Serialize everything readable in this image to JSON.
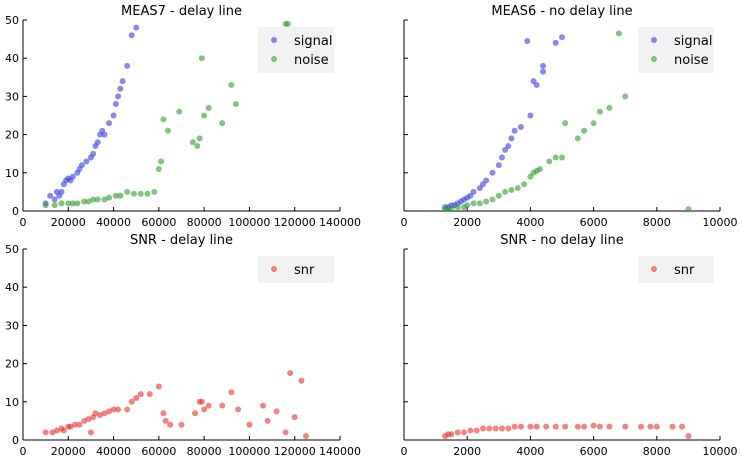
{
  "colors": {
    "signal": "#3b3be0",
    "noise": "#2e9a2e",
    "snr": "#e83030",
    "legend_bg": "#f2f2f2"
  },
  "chart_data": [
    {
      "type": "scatter",
      "title": "MEAS7 - delay line",
      "xlim": [
        0,
        140000
      ],
      "ylim": [
        0,
        50
      ],
      "xticks": [
        0,
        20000,
        40000,
        60000,
        80000,
        100000,
        120000,
        140000
      ],
      "yticks": [
        0,
        10,
        20,
        30,
        40,
        50
      ],
      "show_ytick_labels": true,
      "legend_position": "upper-right",
      "series": [
        {
          "name": "signal",
          "color_key": "signal",
          "points": [
            [
              10000,
              2
            ],
            [
              12000,
              4
            ],
            [
              14000,
              3
            ],
            [
              15000,
              5
            ],
            [
              16000,
              4
            ],
            [
              17000,
              5
            ],
            [
              18000,
              7
            ],
            [
              19000,
              8
            ],
            [
              20000,
              8.5
            ],
            [
              21000,
              8
            ],
            [
              22000,
              9
            ],
            [
              24000,
              10
            ],
            [
              25000,
              11
            ],
            [
              26000,
              12
            ],
            [
              28000,
              13
            ],
            [
              30000,
              14
            ],
            [
              31000,
              15
            ],
            [
              32000,
              17
            ],
            [
              33000,
              18
            ],
            [
              34000,
              20
            ],
            [
              35000,
              21
            ],
            [
              36000,
              20
            ],
            [
              38000,
              23
            ],
            [
              40000,
              25
            ],
            [
              41000,
              28
            ],
            [
              42000,
              30
            ],
            [
              43000,
              32
            ],
            [
              44000,
              34
            ],
            [
              46000,
              38
            ],
            [
              48000,
              46
            ],
            [
              50000,
              48
            ]
          ]
        },
        {
          "name": "noise",
          "color_key": "noise",
          "points": [
            [
              10000,
              1.5
            ],
            [
              14000,
              1.5
            ],
            [
              17000,
              2
            ],
            [
              20000,
              2
            ],
            [
              22000,
              2
            ],
            [
              24000,
              2
            ],
            [
              27000,
              2.5
            ],
            [
              29000,
              2.5
            ],
            [
              31000,
              3
            ],
            [
              33000,
              3
            ],
            [
              36000,
              3
            ],
            [
              38000,
              3.5
            ],
            [
              41000,
              4
            ],
            [
              43000,
              4
            ],
            [
              46000,
              5
            ],
            [
              49000,
              4.5
            ],
            [
              52000,
              4.5
            ],
            [
              55000,
              4.5
            ],
            [
              58000,
              5
            ],
            [
              60000,
              11
            ],
            [
              61000,
              13
            ],
            [
              62000,
              24
            ],
            [
              64000,
              21
            ],
            [
              69000,
              26
            ],
            [
              75000,
              18
            ],
            [
              77000,
              17
            ],
            [
              78000,
              19
            ],
            [
              79000,
              40
            ],
            [
              80000,
              25
            ],
            [
              82000,
              27
            ],
            [
              88000,
              23
            ],
            [
              92000,
              33
            ],
            [
              94000,
              28
            ],
            [
              116000,
              49
            ],
            [
              117000,
              49
            ]
          ]
        }
      ]
    },
    {
      "type": "scatter",
      "title": "MEAS6 - no delay line",
      "xlim": [
        0,
        10000
      ],
      "ylim": [
        0,
        50
      ],
      "xticks": [
        0,
        2000,
        4000,
        6000,
        8000,
        10000
      ],
      "yticks": [
        0,
        10,
        20,
        30,
        40,
        50
      ],
      "show_ytick_labels": false,
      "legend_position": "upper-right",
      "series": [
        {
          "name": "signal",
          "color_key": "signal",
          "points": [
            [
              1300,
              1
            ],
            [
              1400,
              1
            ],
            [
              1500,
              1.5
            ],
            [
              1600,
              1.5
            ],
            [
              1700,
              2
            ],
            [
              1800,
              2.5
            ],
            [
              1900,
              3
            ],
            [
              2000,
              3.5
            ],
            [
              2100,
              4
            ],
            [
              2200,
              5
            ],
            [
              2400,
              6
            ],
            [
              2500,
              7
            ],
            [
              2600,
              8
            ],
            [
              2800,
              10
            ],
            [
              3000,
              12
            ],
            [
              3100,
              14
            ],
            [
              3200,
              16
            ],
            [
              3300,
              17
            ],
            [
              3400,
              19
            ],
            [
              3500,
              21
            ],
            [
              3700,
              22
            ],
            [
              3900,
              44.5
            ],
            [
              4000,
              25
            ],
            [
              4100,
              34
            ],
            [
              4200,
              33
            ],
            [
              4400,
              36.5
            ],
            [
              4400,
              38
            ],
            [
              4800,
              44
            ],
            [
              5000,
              45.5
            ]
          ]
        },
        {
          "name": "noise",
          "color_key": "noise",
          "points": [
            [
              1300,
              0.5
            ],
            [
              1400,
              0.5
            ],
            [
              1500,
              0.5
            ],
            [
              1700,
              1
            ],
            [
              1900,
              1
            ],
            [
              2000,
              1.5
            ],
            [
              2200,
              2
            ],
            [
              2400,
              2
            ],
            [
              2600,
              2.5
            ],
            [
              2800,
              3
            ],
            [
              3000,
              4
            ],
            [
              3200,
              5
            ],
            [
              3400,
              5.5
            ],
            [
              3600,
              6
            ],
            [
              3800,
              7
            ],
            [
              4000,
              9
            ],
            [
              4100,
              10
            ],
            [
              4200,
              10.5
            ],
            [
              4300,
              11
            ],
            [
              4600,
              13
            ],
            [
              4800,
              14
            ],
            [
              5000,
              14
            ],
            [
              5100,
              23
            ],
            [
              5500,
              19
            ],
            [
              5700,
              21
            ],
            [
              6000,
              23
            ],
            [
              6200,
              26
            ],
            [
              6500,
              27
            ],
            [
              6800,
              46.5
            ],
            [
              7000,
              30
            ],
            [
              9000,
              0.5
            ]
          ]
        }
      ]
    },
    {
      "type": "scatter",
      "title": "SNR - delay line",
      "xlim": [
        0,
        140000
      ],
      "ylim": [
        0,
        50
      ],
      "xticks": [
        0,
        20000,
        40000,
        60000,
        80000,
        100000,
        120000,
        140000
      ],
      "yticks": [
        0,
        10,
        20,
        30,
        40,
        50
      ],
      "show_ytick_labels": true,
      "legend_position": "upper-right",
      "series": [
        {
          "name": "snr",
          "color_key": "snr",
          "points": [
            [
              10000,
              2
            ],
            [
              13000,
              2
            ],
            [
              15000,
              2.5
            ],
            [
              17000,
              3
            ],
            [
              18000,
              2.5
            ],
            [
              20000,
              3.5
            ],
            [
              21000,
              3.5
            ],
            [
              23000,
              4
            ],
            [
              25000,
              4
            ],
            [
              27000,
              5
            ],
            [
              29000,
              5.5
            ],
            [
              30000,
              2
            ],
            [
              31000,
              6
            ],
            [
              32000,
              7
            ],
            [
              34000,
              6.5
            ],
            [
              36000,
              7
            ],
            [
              38000,
              7.5
            ],
            [
              40000,
              8
            ],
            [
              42000,
              8
            ],
            [
              46000,
              8
            ],
            [
              48000,
              10
            ],
            [
              50000,
              11
            ],
            [
              52000,
              12
            ],
            [
              56000,
              12
            ],
            [
              60000,
              14
            ],
            [
              62000,
              7
            ],
            [
              63000,
              5
            ],
            [
              65000,
              4
            ],
            [
              70000,
              4
            ],
            [
              76000,
              7
            ],
            [
              78000,
              10
            ],
            [
              79000,
              10
            ],
            [
              80000,
              8
            ],
            [
              82000,
              9
            ],
            [
              88000,
              9
            ],
            [
              92000,
              12.5
            ],
            [
              95000,
              8
            ],
            [
              100000,
              4
            ],
            [
              106000,
              9
            ],
            [
              108000,
              5
            ],
            [
              112000,
              7.5
            ],
            [
              116000,
              2
            ],
            [
              118000,
              17.5
            ],
            [
              120000,
              6
            ],
            [
              123000,
              15.5
            ],
            [
              125000,
              1
            ]
          ]
        }
      ]
    },
    {
      "type": "scatter",
      "title": "SNR - no delay line",
      "xlim": [
        0,
        10000
      ],
      "ylim": [
        0,
        50
      ],
      "xticks": [
        0,
        2000,
        4000,
        6000,
        8000,
        10000
      ],
      "yticks": [
        0,
        10,
        20,
        30,
        40,
        50
      ],
      "show_ytick_labels": false,
      "legend_position": "upper-right",
      "series": [
        {
          "name": "snr",
          "color_key": "snr",
          "points": [
            [
              1300,
              1
            ],
            [
              1400,
              1.5
            ],
            [
              1500,
              1.5
            ],
            [
              1700,
              2
            ],
            [
              1900,
              2
            ],
            [
              2100,
              2.5
            ],
            [
              2300,
              2.5
            ],
            [
              2500,
              3
            ],
            [
              2700,
              3
            ],
            [
              2900,
              3
            ],
            [
              3100,
              3
            ],
            [
              3300,
              3
            ],
            [
              3500,
              3.5
            ],
            [
              3700,
              3.5
            ],
            [
              4000,
              3.5
            ],
            [
              4200,
              3.5
            ],
            [
              4500,
              3.5
            ],
            [
              4800,
              3.5
            ],
            [
              5100,
              3.5
            ],
            [
              5500,
              3.5
            ],
            [
              5700,
              3.5
            ],
            [
              6000,
              3.8
            ],
            [
              6200,
              3.5
            ],
            [
              6500,
              3.5
            ],
            [
              7000,
              3.5
            ],
            [
              7500,
              3.5
            ],
            [
              7800,
              3.5
            ],
            [
              8000,
              3.5
            ],
            [
              8500,
              3.5
            ],
            [
              8800,
              3.5
            ],
            [
              9000,
              1
            ]
          ]
        }
      ]
    }
  ]
}
